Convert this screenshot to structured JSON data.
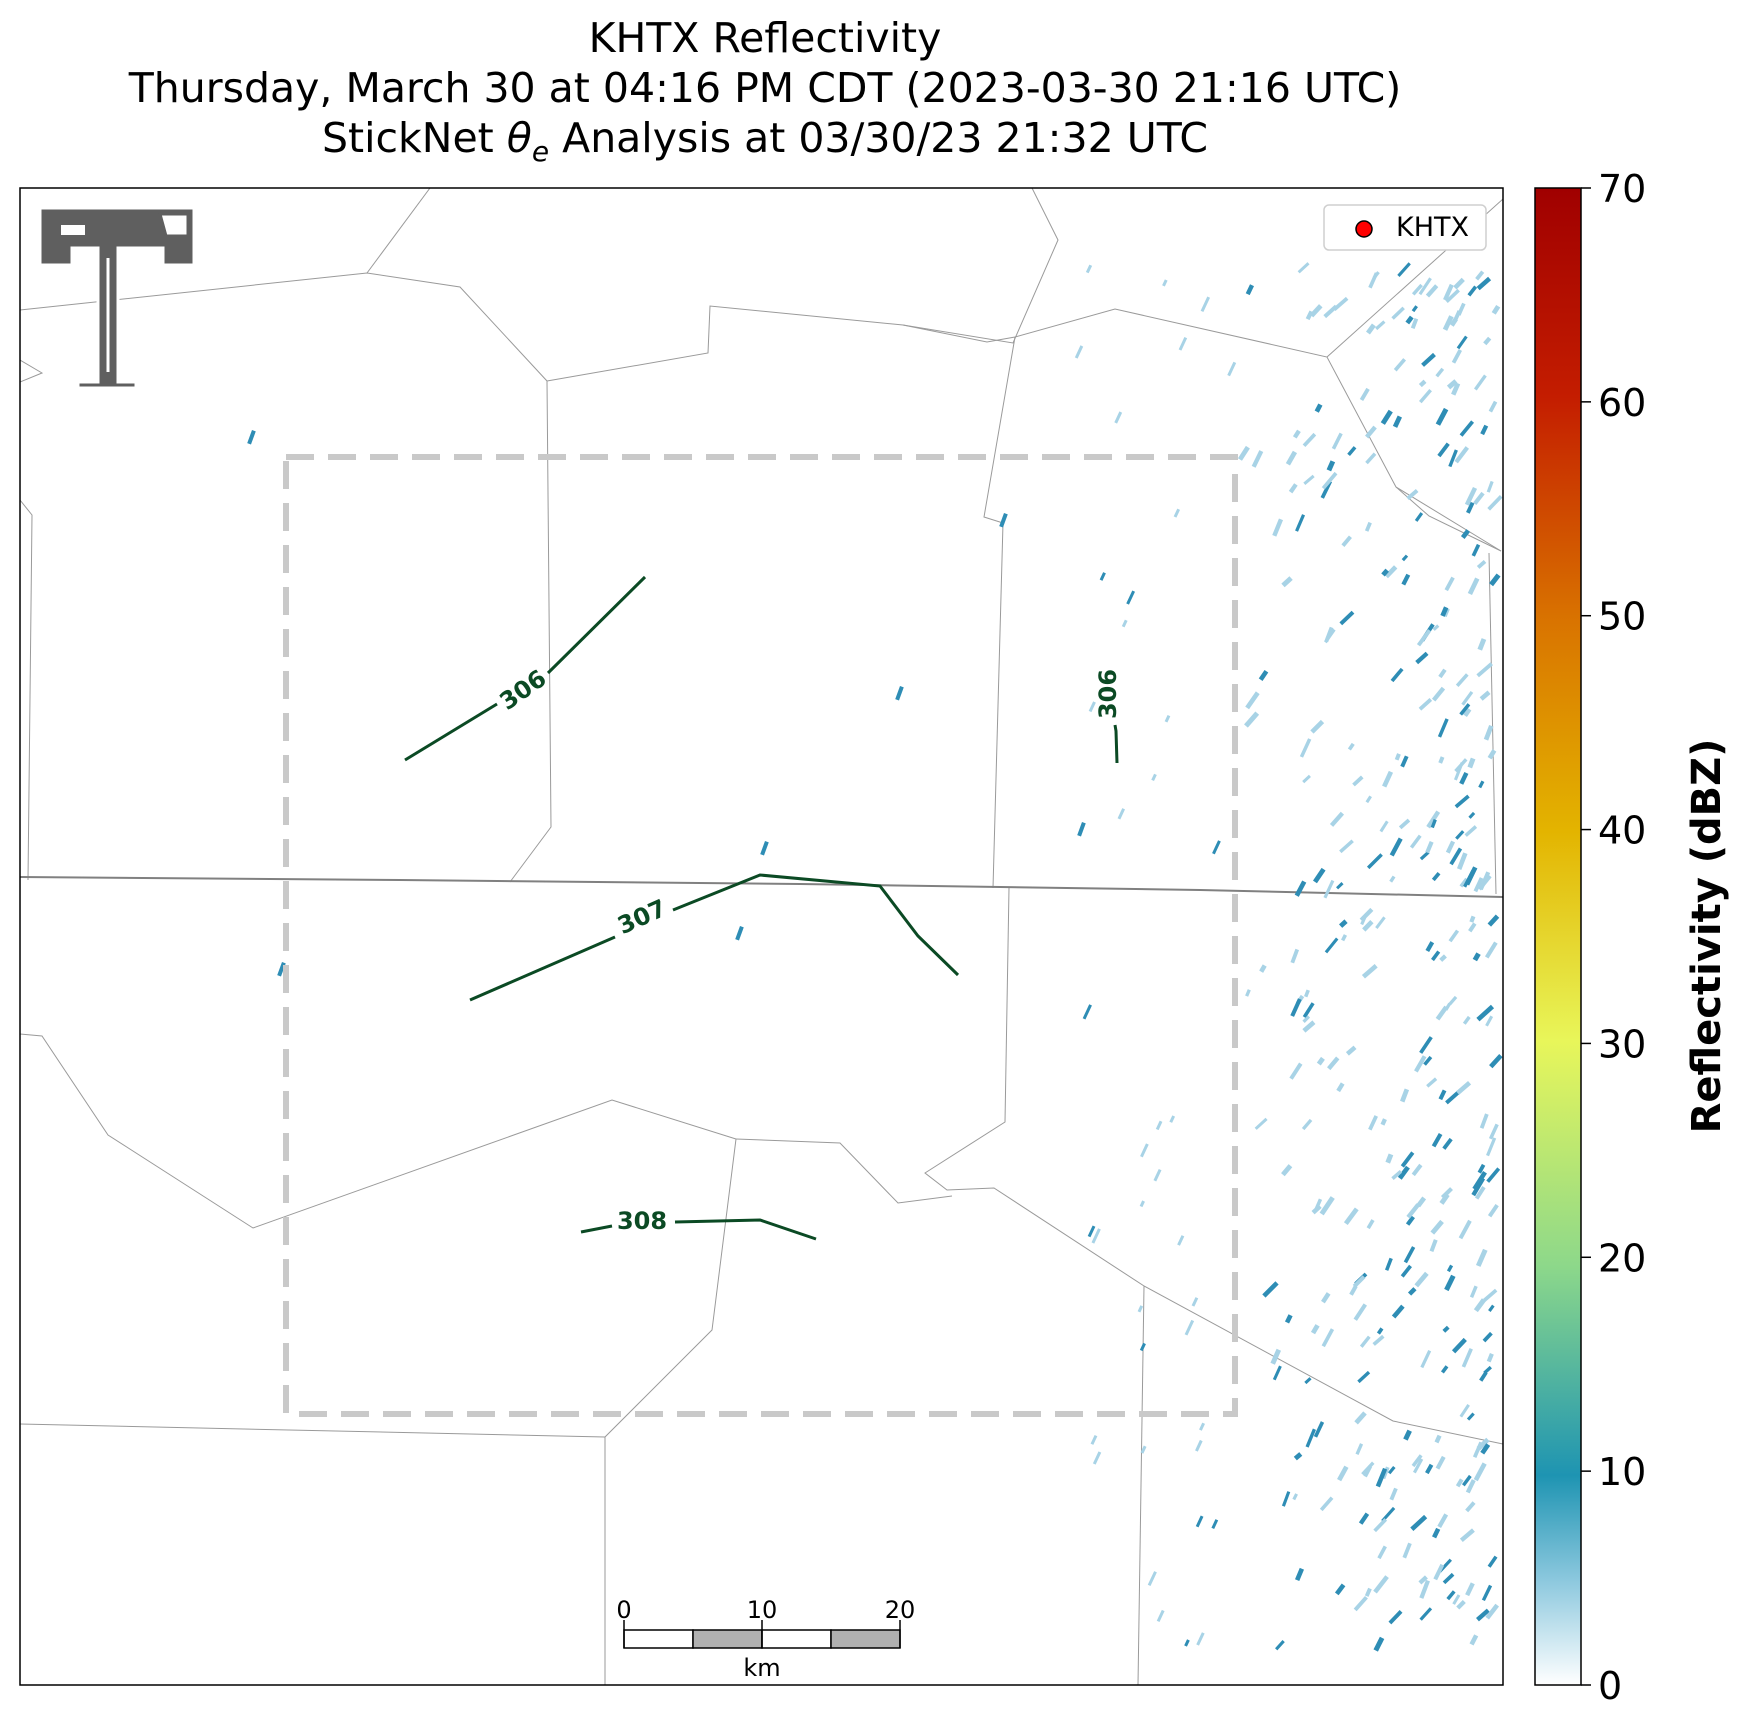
{
  "title": {
    "line1": "KHTX Reflectivity",
    "line2": "Thursday, March 30 at 04:16 PM CDT (2023-03-30 21:16 UTC)",
    "line3_prefix": "StickNet ",
    "line3_theta": "θ",
    "line3_sub": "e",
    "line3_suffix": " Analysis at 03/30/23 21:32 UTC"
  },
  "legend": {
    "label": "KHTX",
    "marker_color": "#ff0000"
  },
  "contours": {
    "color": "#0b4a24",
    "labels": [
      "306",
      "306",
      "307",
      "308"
    ]
  },
  "scalebar": {
    "ticks": [
      "0",
      "10",
      "20"
    ],
    "unit": "km"
  },
  "colorbar": {
    "label": "Reflectivity (dBZ)",
    "min": 0,
    "max": 70,
    "ticks": [
      "0",
      "10",
      "20",
      "30",
      "40",
      "50",
      "60",
      "70"
    ],
    "stops": [
      "#ffffff",
      "#1e94b2",
      "#54bd8e",
      "#e8f65a",
      "#e3b400",
      "#d97400",
      "#c41d00",
      "#a00000"
    ]
  },
  "logo": {
    "name": "Texas Tech double-T"
  },
  "colors": {
    "study_box": "#c9c9c9",
    "state_line": "#808080",
    "county_line": "#9a9a9a",
    "echo_light": "#a8d3e6",
    "echo_dark": "#2e8db5"
  }
}
